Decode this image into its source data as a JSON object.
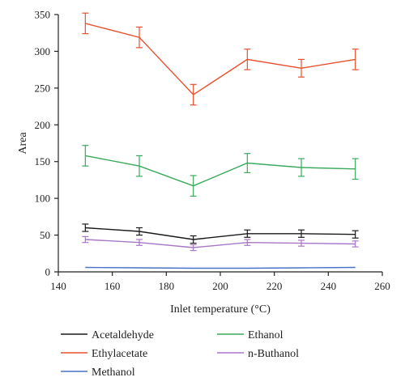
{
  "chart_data": {
    "type": "line",
    "xlabel": "Inlet temperature (°C)",
    "ylabel": "Area",
    "xlim": [
      140,
      260
    ],
    "ylim": [
      0,
      350
    ],
    "xticks": [
      140,
      160,
      180,
      200,
      220,
      240,
      260
    ],
    "yticks": [
      0,
      50,
      100,
      150,
      200,
      250,
      300,
      350
    ],
    "x": [
      150,
      170,
      190,
      210,
      230,
      250
    ],
    "series": [
      {
        "name": "Acetaldehyde",
        "color": "#1a1a1a",
        "values": [
          60,
          55,
          44,
          52,
          52,
          51
        ],
        "errors": [
          5,
          5,
          5,
          5,
          5,
          5
        ]
      },
      {
        "name": "Ethylacetate",
        "color": "#e8502e",
        "values": [
          338,
          319,
          241,
          289,
          277,
          289
        ],
        "errors": [
          14,
          14,
          14,
          14,
          12,
          14
        ]
      },
      {
        "name": "Methanol",
        "color": "#4a72c6",
        "values": [
          6,
          5.5,
          5,
          5,
          5.5,
          6
        ],
        "errors": [
          0,
          0,
          0,
          0,
          0,
          0
        ]
      },
      {
        "name": "Ethanol",
        "color": "#3aaa5c",
        "values": [
          158,
          144,
          117,
          148,
          142,
          140
        ],
        "errors": [
          14,
          14,
          14,
          13,
          12,
          14
        ]
      },
      {
        "name": "n-Buthanol",
        "color": "#a877c8",
        "values": [
          44,
          40,
          33,
          40,
          39,
          38
        ],
        "errors": [
          4,
          4,
          4,
          4,
          4,
          4
        ]
      }
    ],
    "grid": false,
    "legend": "bottom"
  }
}
